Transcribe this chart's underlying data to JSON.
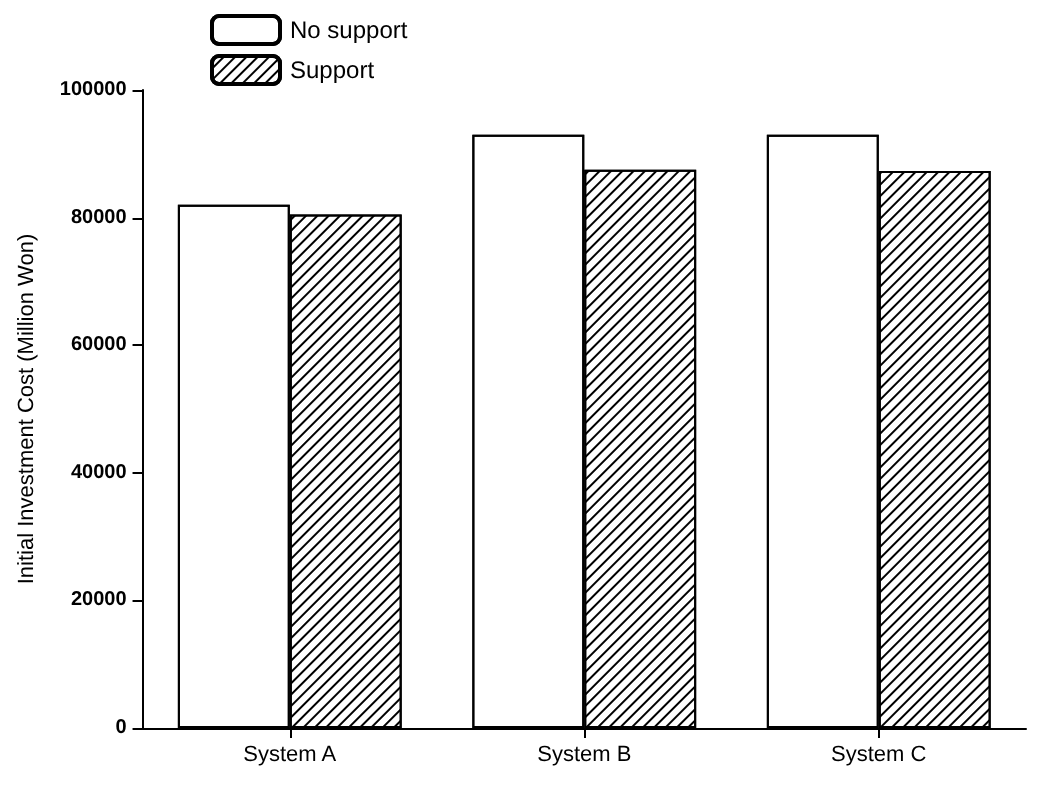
{
  "chart_data": {
    "type": "bar",
    "ylabel": "Initial Investment Cost (Million Won)",
    "categories": [
      "System A",
      "System B",
      "System C"
    ],
    "series": [
      {
        "name": "No support",
        "color": "#ffffff",
        "values": [
          82000,
          93000,
          93000
        ]
      },
      {
        "name": "Support",
        "color": "#000000",
        "values": [
          80500,
          87500,
          87300
        ]
      }
    ],
    "ylim": [
      0,
      100000
    ],
    "yticks": [
      0,
      20000,
      40000,
      60000,
      80000,
      100000
    ],
    "legend": "top left"
  }
}
